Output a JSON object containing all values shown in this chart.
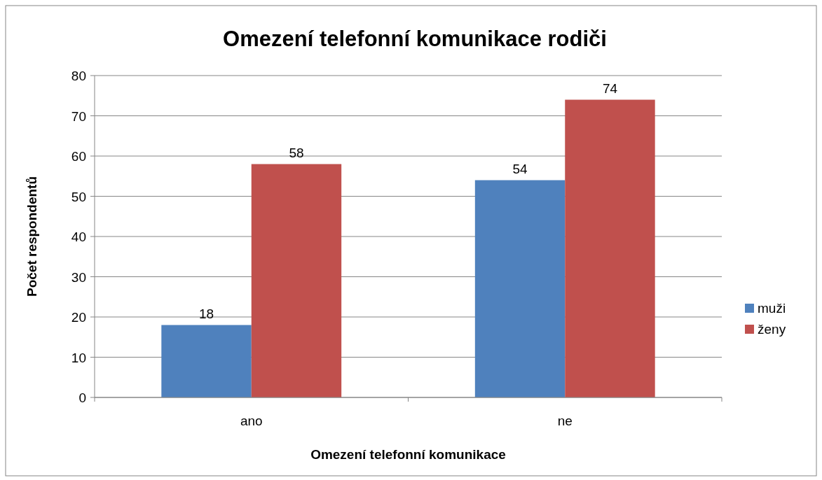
{
  "chart_data": {
    "type": "bar",
    "title": "Omezení telefonní komunikace rodiči",
    "xlabel": "Omezení telefonní komunikace",
    "ylabel": "Počet respondentů",
    "categories": [
      "ano",
      "ne"
    ],
    "series": [
      {
        "name": "muži",
        "color": "#4f81bd",
        "values": [
          18,
          54
        ]
      },
      {
        "name": "ženy",
        "color": "#c0504d",
        "values": [
          58,
          74
        ]
      }
    ],
    "ylim": [
      0,
      80
    ],
    "yticks": [
      0,
      10,
      20,
      30,
      40,
      50,
      60,
      70,
      80
    ],
    "grid": "y",
    "legend": "right",
    "data_labels": true
  }
}
